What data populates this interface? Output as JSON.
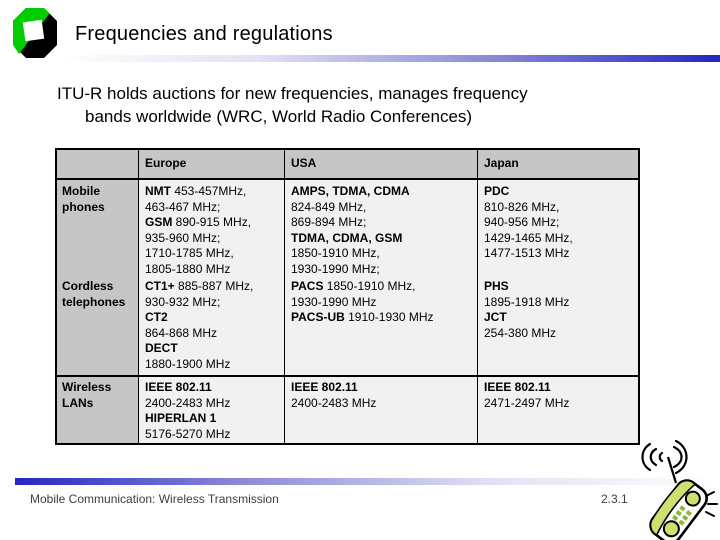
{
  "slide": {
    "title": "Frequencies and regulations",
    "bullet": {
      "line1": "ITU-R holds auctions for new frequencies, manages frequency",
      "line2": "bands worldwide (WRC, World Radio Conferences)"
    },
    "footer": {
      "left": "Mobile Communication: Wireless Transmission",
      "slide_number": "2.3.1"
    }
  },
  "colors": {
    "accent_blue": "#2525c0",
    "table_header_bg": "#c6c6c6",
    "table_cell_bg": "#f1f1f1",
    "logo_green": "#00cc00",
    "phone_green": "#cfe070"
  },
  "icons": {
    "logo": "university-octagon-logo",
    "clipart": "cordless-phone-with-signal-waves"
  },
  "table": {
    "col_headers": [
      "Europe",
      "USA",
      "Japan"
    ],
    "row_labels": [
      "Mobile phones",
      "Cordless telephones",
      "Wireless LANs"
    ],
    "cells": {
      "mobile": {
        "europe": [
          [
            {
              "b": 1,
              "t": "NMT"
            },
            {
              "t": " 453-457MHz,"
            }
          ],
          [
            {
              "t": "463-467 MHz;"
            }
          ],
          [
            {
              "b": 1,
              "t": "GSM"
            },
            {
              "t": " 890-915 MHz,"
            }
          ],
          [
            {
              "t": "935-960 MHz;"
            }
          ],
          [
            {
              "t": "1710-1785 MHz,"
            }
          ],
          [
            {
              "t": "1805-1880 MHz"
            }
          ]
        ],
        "usa": [
          [
            {
              "b": 1,
              "t": "AMPS, TDMA, CDMA"
            }
          ],
          [
            {
              "t": "824-849 MHz,"
            }
          ],
          [
            {
              "t": "869-894 MHz;"
            }
          ],
          [
            {
              "b": 1,
              "t": "TDMA, CDMA, GSM"
            }
          ],
          [
            {
              "t": "1850-1910 MHz,"
            }
          ],
          [
            {
              "t": "1930-1990 MHz;"
            }
          ]
        ],
        "japan": [
          [
            {
              "b": 1,
              "t": "PDC"
            }
          ],
          [
            {
              "t": "810-826 MHz,"
            }
          ],
          [
            {
              "t": "940-956 MHz;"
            }
          ],
          [
            {
              "t": "1429-1465 MHz,"
            }
          ],
          [
            {
              "t": "1477-1513 MHz"
            }
          ]
        ]
      },
      "cordless": {
        "europe": [
          [
            {
              "b": 1,
              "t": "CT1+"
            },
            {
              "t": " 885-887 MHz,"
            }
          ],
          [
            {
              "t": "930-932 MHz;"
            }
          ],
          [
            {
              "b": 1,
              "t": "CT2"
            }
          ],
          [
            {
              "t": "864-868 MHz"
            }
          ],
          [
            {
              "b": 1,
              "t": "DECT"
            }
          ],
          [
            {
              "t": "1880-1900 MHz"
            }
          ]
        ],
        "usa": [
          [
            {
              "b": 1,
              "t": "PACS"
            },
            {
              "t": " 1850-1910 MHz,"
            }
          ],
          [
            {
              "t": "1930-1990 MHz"
            }
          ],
          [
            {
              "b": 1,
              "t": "PACS-UB"
            },
            {
              "t": " 1910-1930 MHz"
            }
          ]
        ],
        "japan": [
          [
            {
              "b": 1,
              "t": "PHS"
            }
          ],
          [
            {
              "t": "1895-1918 MHz"
            }
          ],
          [
            {
              "b": 1,
              "t": "JCT"
            }
          ],
          [
            {
              "t": "254-380 MHz"
            }
          ]
        ]
      },
      "wireless": {
        "europe": [
          [
            {
              "b": 1,
              "t": "IEEE 802.11"
            }
          ],
          [
            {
              "t": "2400-2483 MHz"
            }
          ],
          [
            {
              "b": 1,
              "t": "HIPERLAN 1"
            }
          ],
          [
            {
              "t": "5176-5270 MHz"
            }
          ]
        ],
        "usa": [
          [
            {
              "b": 1,
              "t": "IEEE 802.11"
            }
          ],
          [
            {
              "t": "2400-2483 MHz"
            }
          ]
        ],
        "japan": [
          [
            {
              "b": 1,
              "t": "IEEE 802.11"
            }
          ],
          [
            {
              "t": "2471-2497 MHz"
            }
          ]
        ]
      }
    }
  }
}
